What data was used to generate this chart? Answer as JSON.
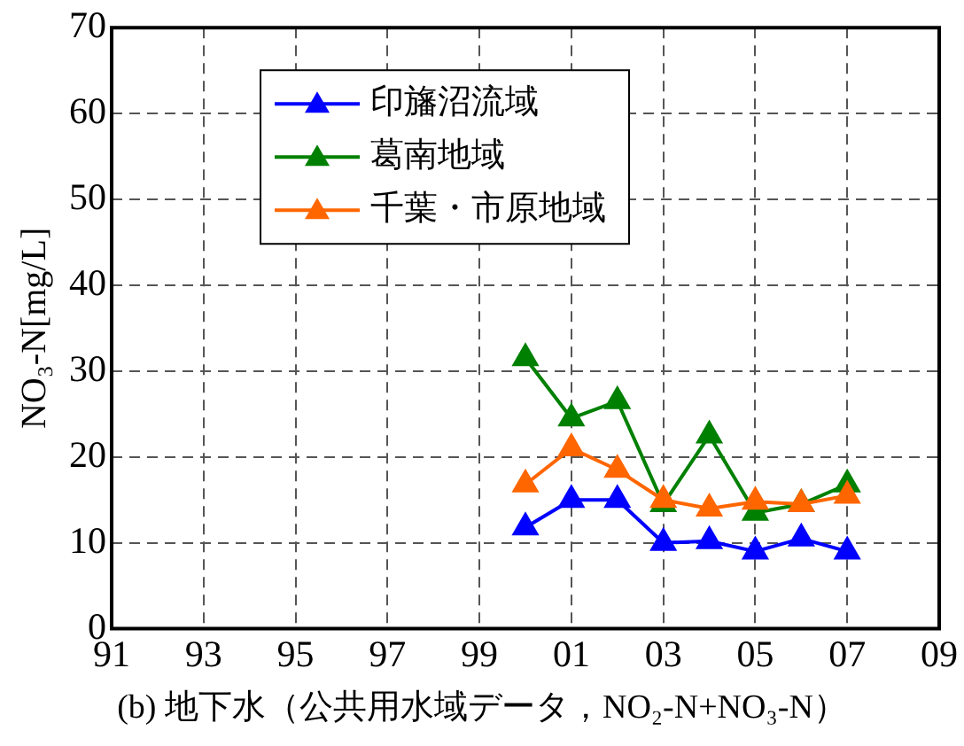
{
  "chart_data": {
    "type": "line",
    "xlabel": "(b) 地下水（公共用水域データ，NO₂-N+NO₃-N）",
    "ylabel": "NO₃-N[mg/L]",
    "x": [
      2000,
      2001,
      2002,
      2003,
      2004,
      2005,
      2006,
      2007
    ],
    "series": [
      {
        "name": "印旛沼流域",
        "color": "#0000ff",
        "values": [
          11.8,
          15,
          15,
          10,
          10.2,
          9,
          10.5,
          9
        ]
      },
      {
        "name": "葛南地域",
        "color": "#008000",
        "values": [
          31.5,
          24.5,
          26.5,
          14.5,
          22.5,
          13.5,
          14.5,
          16.8
        ]
      },
      {
        "name": "千葉・市原地域",
        "color": "#ff6600",
        "values": [
          16.8,
          21,
          18.5,
          15,
          14,
          14.8,
          14.5,
          15.5
        ]
      }
    ],
    "xlim": [
      1991,
      2009
    ],
    "xticks": [
      {
        "value": 1991,
        "label": "91"
      },
      {
        "value": 1993,
        "label": "93"
      },
      {
        "value": 1995,
        "label": "95"
      },
      {
        "value": 1997,
        "label": "97"
      },
      {
        "value": 1999,
        "label": "99"
      },
      {
        "value": 2001,
        "label": "01"
      },
      {
        "value": 2003,
        "label": "03"
      },
      {
        "value": 2005,
        "label": "05"
      },
      {
        "value": 2007,
        "label": "07"
      },
      {
        "value": 2009,
        "label": "09"
      }
    ],
    "ylim": [
      0,
      70
    ],
    "yticks": [
      0,
      10,
      20,
      30,
      40,
      50,
      60,
      70
    ],
    "grid": true,
    "legend": "top left",
    "marker": "triangle",
    "line_style": "solid"
  }
}
